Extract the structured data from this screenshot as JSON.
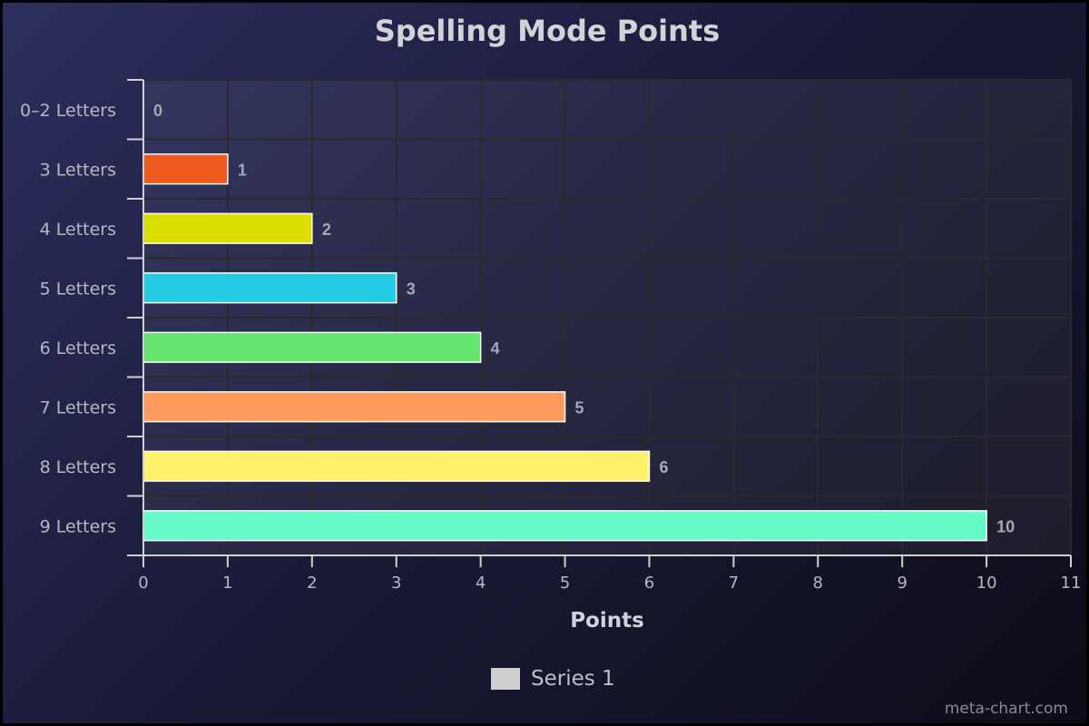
{
  "title": "Spelling Mode Points",
  "chart_data": {
    "type": "bar",
    "orientation": "horizontal",
    "categories": [
      "0–2 Letters",
      "3 Letters",
      "4 Letters",
      "5 Letters",
      "6 Letters",
      "7 Letters",
      "8 Letters",
      "9 Letters"
    ],
    "values": [
      0,
      1,
      2,
      3,
      4,
      5,
      6,
      10
    ],
    "colors": [
      "#e8e8e8",
      "#ef5a1f",
      "#dbe000",
      "#23cce2",
      "#63e46e",
      "#fe9a5c",
      "#fef26c",
      "#66fac6"
    ],
    "xlabel": "Points",
    "ylabel": "",
    "xlim": [
      0,
      11
    ],
    "xticks": [
      0,
      1,
      2,
      3,
      4,
      5,
      6,
      7,
      8,
      9,
      10,
      11
    ],
    "grid": true,
    "legend": {
      "position": "bottom-center",
      "entries": [
        "Series 1"
      ]
    }
  },
  "legend_label": "Series 1",
  "credit": "meta-chart.com"
}
